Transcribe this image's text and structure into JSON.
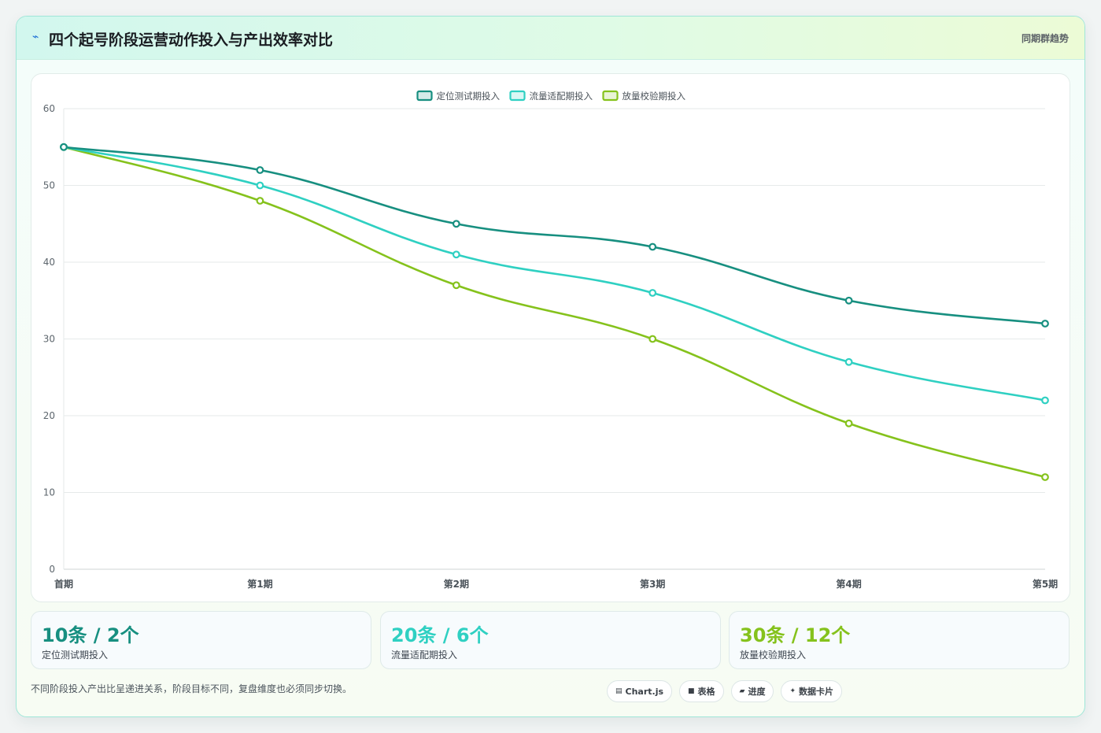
{
  "header": {
    "icon": "lightning-icon",
    "title": "四个起号阶段运营动作投入与产出效率对比",
    "tag": "同期群趋势"
  },
  "chart_data": {
    "type": "line",
    "x": [
      "首期",
      "第1期",
      "第2期",
      "第3期",
      "第4期",
      "第5期"
    ],
    "series": [
      {
        "name": "定位测试期投入",
        "values": [
          55,
          52,
          45,
          42,
          35,
          32
        ],
        "color": "#178f80"
      },
      {
        "name": "流量适配期投入",
        "values": [
          55,
          50,
          41,
          36,
          27,
          22
        ],
        "color": "#2fd0c2"
      },
      {
        "name": "放量校验期投入",
        "values": [
          55,
          48,
          37,
          30,
          19,
          12
        ],
        "color": "#85c21c"
      }
    ],
    "ylim": [
      0,
      60
    ],
    "yticks": [
      0,
      10,
      20,
      30,
      40,
      50,
      60
    ],
    "legend": "top-center",
    "grid": true
  },
  "stats": [
    {
      "value": "10条 / 2个",
      "label": "定位测试期投入",
      "color": "#178f80"
    },
    {
      "value": "20条 / 6个",
      "label": "流量适配期投入",
      "color": "#2fd0c2"
    },
    {
      "value": "30条 / 12个",
      "label": "放量校验期投入",
      "color": "#85c21c"
    }
  ],
  "footer": {
    "note": "不同阶段投入产出比呈递进关系，阶段目标不同，复盘维度也必须同步切换。",
    "chips": [
      {
        "icon": "chart-icon",
        "glyph": "▤",
        "label": "Chart.js"
      },
      {
        "icon": "table-icon",
        "glyph": "■",
        "label": "表格"
      },
      {
        "icon": "progress-icon",
        "glyph": "▰",
        "label": "进度"
      },
      {
        "icon": "card-icon",
        "glyph": "✦",
        "label": "数据卡片"
      }
    ]
  }
}
